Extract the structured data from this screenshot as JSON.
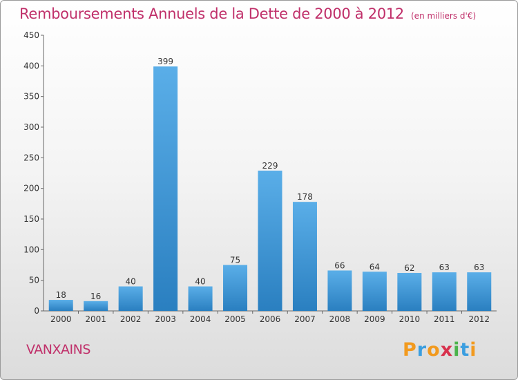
{
  "chart_data": {
    "type": "bar",
    "title": "Remboursements Annuels de la Dette de 2000 à 2012",
    "subtitle": "(en milliers d'€)",
    "categories": [
      "2000",
      "2001",
      "2002",
      "2003",
      "2004",
      "2005",
      "2006",
      "2007",
      "2008",
      "2009",
      "2010",
      "2011",
      "2012"
    ],
    "values": [
      18,
      16,
      40,
      399,
      40,
      75,
      229,
      178,
      66,
      64,
      62,
      63,
      63
    ],
    "ylim": [
      0,
      450
    ],
    "yticks": [
      0,
      50,
      100,
      150,
      200,
      250,
      300,
      350,
      400,
      450
    ],
    "grid": false,
    "bar_color_top": "#5aaee8",
    "bar_color_bottom": "#2a7fc0"
  },
  "commune": "VANXAINS",
  "logo": {
    "letters": [
      "P",
      "r",
      "o",
      "x",
      "i",
      "t",
      "i"
    ],
    "colors": [
      "#f29a1e",
      "#3a9ee0",
      "#f29a1e",
      "#d8314d",
      "#4bb34b",
      "#3a9ee0",
      "#f29a1e"
    ]
  },
  "colors": {
    "title": "#c0306a",
    "axis": "#666666"
  }
}
